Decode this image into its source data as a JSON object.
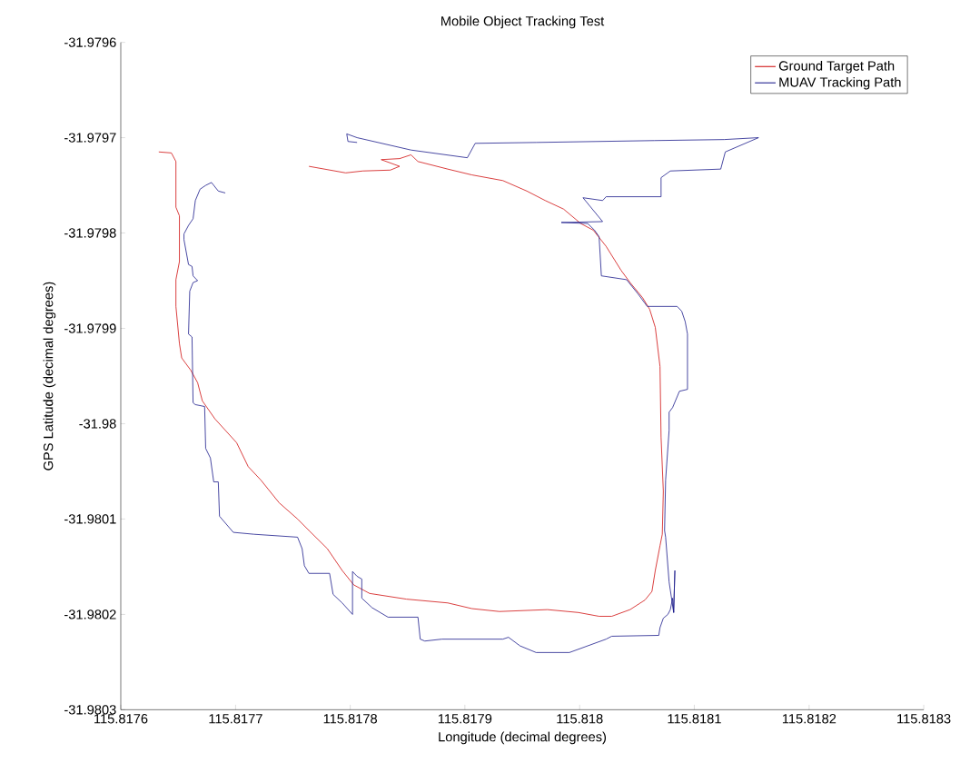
{
  "chart_data": {
    "type": "line",
    "title": "Mobile Object Tracking Test",
    "xlabel": "Longitude (decimal degrees)",
    "ylabel": "GPS Latitude (decimal degrees)",
    "xlim": [
      115.8176,
      115.8183
    ],
    "xticks": [
      115.8176,
      115.8177,
      115.8178,
      115.8179,
      115.818,
      115.8181,
      115.8182,
      115.8183
    ],
    "ylim": [
      -31.9803,
      -31.9796
    ],
    "yticks": [
      -31.9803,
      -31.9802,
      -31.9801,
      -31.98,
      -31.9799,
      -31.9798,
      -31.9797,
      -31.9796
    ],
    "grid": false,
    "legend": "top right",
    "marker": "none",
    "line_style": "solid",
    "series": [
      {
        "name": "Ground Target Path",
        "color": "#d01010",
        "x": [
          115.817764,
          115.817796,
          115.817811,
          115.817835,
          115.817843,
          115.817827,
          115.817843,
          115.817853,
          115.817859,
          115.817885,
          115.817906,
          115.817933,
          115.817954,
          115.81797,
          115.817986,
          115.818001,
          115.818012,
          115.818023,
          115.818036,
          115.818044,
          115.818055,
          115.818061,
          115.818066,
          115.81807,
          115.818071,
          115.818073,
          115.818072,
          115.81807,
          115.818066,
          115.818063,
          115.818057,
          115.818044,
          115.818028,
          115.818017,
          115.817999,
          115.817972,
          115.81793,
          115.817906,
          115.817885,
          115.817849,
          115.817817,
          115.817803,
          115.817793,
          115.81778,
          115.817764,
          115.817754,
          115.817738,
          115.817722,
          115.817711,
          115.817701,
          115.817682,
          115.817671,
          115.817667,
          115.817661,
          115.817653,
          115.817651,
          115.817648,
          115.817648,
          115.817651,
          115.817651,
          115.817648,
          115.817648,
          115.817644,
          115.817633
        ],
        "values": [
          -31.97973,
          -31.979737,
          -31.979735,
          -31.979734,
          -31.97973,
          -31.979723,
          -31.979722,
          -31.979718,
          -31.979725,
          -31.979733,
          -31.979739,
          -31.979745,
          -31.979756,
          -31.979766,
          -31.979775,
          -31.97979,
          -31.979797,
          -31.979814,
          -31.979839,
          -31.979852,
          -31.979868,
          -31.97988,
          -31.979899,
          -31.97994,
          -31.980014,
          -31.980071,
          -31.980116,
          -31.980128,
          -31.980154,
          -31.980176,
          -31.980185,
          -31.980195,
          -31.980202,
          -31.980202,
          -31.980198,
          -31.980195,
          -31.980197,
          -31.980194,
          -31.980188,
          -31.980184,
          -31.980178,
          -31.980169,
          -31.980154,
          -31.980131,
          -31.980112,
          -31.9801,
          -31.980083,
          -31.980059,
          -31.980045,
          -31.98002,
          -31.979995,
          -31.979976,
          -31.979957,
          -31.979944,
          -31.979931,
          -31.979916,
          -31.979877,
          -31.979849,
          -31.97983,
          -31.979782,
          -31.979773,
          -31.979725,
          -31.979716,
          -31.979715
        ]
      },
      {
        "name": "MUAV Tracking Path",
        "color": "#1c1c8c",
        "x": [
          115.817691,
          115.817685,
          115.817679,
          115.817674,
          115.817669,
          115.817665,
          115.817663,
          115.817659,
          115.817655,
          115.817655,
          115.817659,
          115.817662,
          115.817663,
          115.817667,
          115.817663,
          115.81766,
          115.817659,
          115.817662,
          115.817663,
          115.817665,
          115.817673,
          115.817674,
          115.817678,
          115.817681,
          115.817685,
          115.817686,
          115.817698,
          115.817716,
          115.817754,
          115.817758,
          115.81776,
          115.817764,
          115.817782,
          115.817785,
          115.817793,
          115.817802,
          115.817802,
          115.817806,
          115.81781,
          115.81781,
          115.817819,
          115.817833,
          115.817859,
          115.817861,
          115.817865,
          115.81788,
          115.817933,
          115.817938,
          115.817948,
          115.817962,
          115.817991,
          115.818023,
          115.818028,
          115.818069,
          115.81807,
          115.818073,
          115.818077,
          115.818079,
          115.818081,
          115.818082,
          115.818083,
          115.818082,
          115.818078,
          115.818075,
          115.818074,
          115.818075,
          115.818078,
          115.818078,
          115.818081,
          115.818087,
          115.818094,
          115.818094,
          115.818092,
          115.818089,
          115.818085,
          115.818059,
          115.818051,
          115.818041,
          115.818019,
          115.818017,
          115.818013,
          115.818007,
          115.817984,
          115.81802,
          115.818003,
          115.81802,
          115.818023,
          115.818071,
          115.818071,
          115.818079,
          115.818123,
          115.818127,
          115.818156,
          115.818126,
          115.818065,
          115.817962,
          115.817909,
          115.817902,
          115.817853,
          115.817806,
          115.817797,
          115.817798,
          115.817806
        ],
        "values": [
          -31.979758,
          -31.979756,
          -31.979747,
          -31.97975,
          -31.979754,
          -31.979766,
          -31.979785,
          -31.979792,
          -31.979801,
          -31.979807,
          -31.979833,
          -31.979835,
          -31.979845,
          -31.97985,
          -31.979852,
          -31.979861,
          -31.979906,
          -31.979909,
          -31.979978,
          -31.97998,
          -31.979982,
          -31.980026,
          -31.980036,
          -31.980061,
          -31.980061,
          -31.980097,
          -31.980114,
          -31.980116,
          -31.980119,
          -31.980131,
          -31.980149,
          -31.980157,
          -31.980157,
          -31.980179,
          -31.980188,
          -31.9802,
          -31.980155,
          -31.98016,
          -31.980163,
          -31.980183,
          -31.980193,
          -31.980203,
          -31.980203,
          -31.980226,
          -31.980228,
          -31.980226,
          -31.980226,
          -31.980224,
          -31.980233,
          -31.98024,
          -31.98024,
          -31.980226,
          -31.980223,
          -31.980222,
          -31.980214,
          -31.980204,
          -31.9802,
          -31.980195,
          -31.980183,
          -31.980198,
          -31.980154,
          -31.980198,
          -31.980166,
          -31.980119,
          -31.980112,
          -31.980059,
          -31.980007,
          -31.979988,
          -31.979983,
          -31.979966,
          -31.979964,
          -31.979906,
          -31.979893,
          -31.979882,
          -31.979877,
          -31.979877,
          -31.979864,
          -31.979849,
          -31.979845,
          -31.979804,
          -31.979797,
          -31.97979,
          -31.979789,
          -31.979788,
          -31.979763,
          -31.979766,
          -31.979762,
          -31.979762,
          -31.979742,
          -31.979735,
          -31.979733,
          -31.979715,
          -31.9797,
          -31.979702,
          -31.979703,
          -31.979705,
          -31.979706,
          -31.979721,
          -31.979713,
          -31.9797,
          -31.979696,
          -31.979704,
          -31.979705
        ]
      }
    ]
  }
}
